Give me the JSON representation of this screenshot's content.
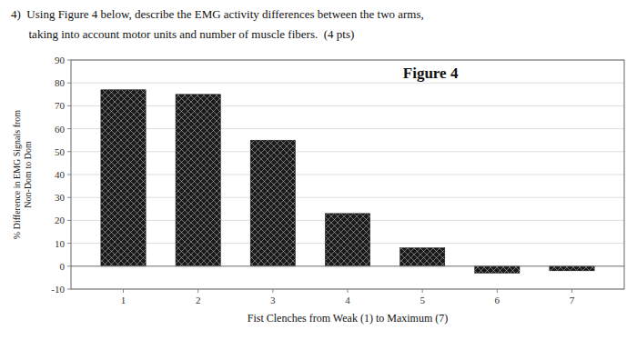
{
  "chart_data": {
    "type": "bar",
    "title": "Figure 4",
    "annotations": [
      "4)  Using Figure 4 below, describe the EMG activity differences between the two arms,",
      "      taking into account motor units and number of muscle fibers.  (4 pts)"
    ],
    "xlabel": "Fist Clenches from Weak (1) to Maximum (7)",
    "ylabel": "% Difference in EMG Signals from\nNon-Dom to Dom",
    "x": [
      1,
      2,
      3,
      4,
      5,
      6,
      7
    ],
    "values": [
      77,
      75,
      55,
      23,
      8,
      -3,
      -2
    ],
    "color": "#1a1a1a",
    "xlim": [
      0.3,
      7.7
    ],
    "xticks": [
      1,
      2,
      3,
      4,
      5,
      6,
      7
    ],
    "ylim": [
      -10,
      90
    ],
    "yticks": [
      -10,
      0,
      10,
      20,
      30,
      40,
      50,
      60,
      70,
      80,
      90
    ],
    "grid": true
  }
}
